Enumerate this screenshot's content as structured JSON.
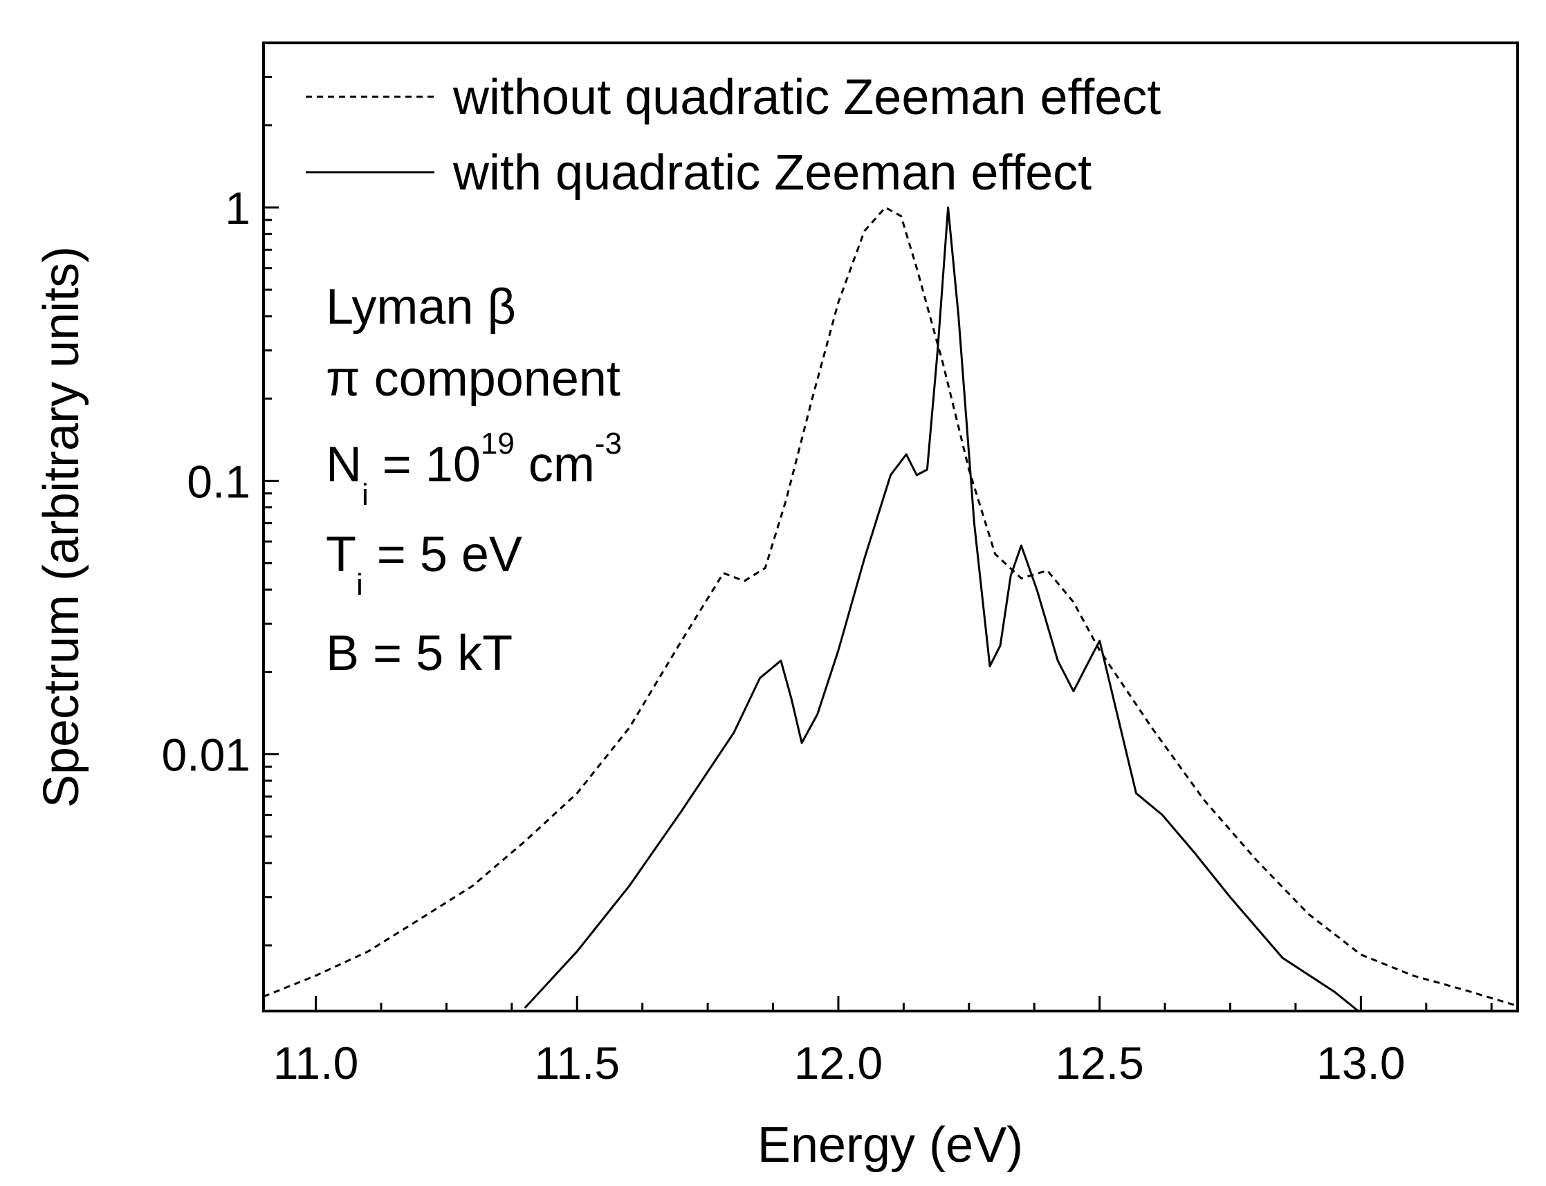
{
  "chart_data": {
    "type": "line",
    "xlabel": "Energy (eV)",
    "ylabel": "Spectrum (arbitrary units)",
    "xlim": [
      10.9,
      13.3
    ],
    "ylim": [
      0.00115,
      4.0
    ],
    "yscale": "log",
    "x_ticks": [
      11.0,
      11.5,
      12.0,
      12.5,
      13.0
    ],
    "x_tick_labels": [
      "11.0",
      "11.5",
      "12.0",
      "12.5",
      "13.0"
    ],
    "x_minor_step": 0.125,
    "y_ticks": [
      0.01,
      0.1,
      1
    ],
    "y_tick_labels": [
      "0.01",
      "0.1",
      "1"
    ],
    "grid": false,
    "legend_position": "top-left",
    "annotation": {
      "line1": "Lyman β",
      "line2": "π component",
      "ni_prefix": "N",
      "ni_sub": "i",
      "ni_mid": " = 10",
      "ni_sup": "19",
      "ni_unit": " cm",
      "ni_unit_sup": "-3",
      "ti_prefix": "T",
      "ti_sub": "i",
      "ti_rest": " = 5 eV",
      "b_line": "B = 5 kT"
    },
    "series": [
      {
        "name": "without quadratic Zeeman effect",
        "style": "dashed",
        "color": "#000000",
        "x": [
          10.9,
          11.0,
          11.1,
          11.2,
          11.3,
          11.4,
          11.5,
          11.6,
          11.7,
          11.78,
          11.82,
          11.86,
          11.9,
          11.95,
          12.0,
          12.05,
          12.09,
          12.12,
          12.15,
          12.2,
          12.25,
          12.3,
          12.35,
          12.4,
          12.45,
          12.5,
          12.6,
          12.7,
          12.8,
          12.9,
          13.0,
          13.1,
          13.2,
          13.3
        ],
        "values": [
          0.0013,
          0.00155,
          0.0019,
          0.0025,
          0.0033,
          0.0048,
          0.0072,
          0.0125,
          0.026,
          0.046,
          0.043,
          0.048,
          0.085,
          0.2,
          0.45,
          0.82,
          1.0,
          0.93,
          0.6,
          0.27,
          0.11,
          0.054,
          0.044,
          0.047,
          0.036,
          0.024,
          0.0125,
          0.0068,
          0.0041,
          0.0026,
          0.00185,
          0.00155,
          0.00137,
          0.0012
        ]
      },
      {
        "name": "with quadratic Zeeman effect",
        "style": "solid",
        "color": "#000000",
        "x": [
          11.4,
          11.5,
          11.6,
          11.7,
          11.8,
          11.85,
          11.89,
          11.91,
          11.93,
          11.96,
          12.0,
          12.05,
          12.1,
          12.13,
          12.15,
          12.17,
          12.19,
          12.21,
          12.23,
          12.26,
          12.29,
          12.31,
          12.33,
          12.35,
          12.38,
          12.42,
          12.45,
          12.48,
          12.5,
          12.53,
          12.57,
          12.62,
          12.68,
          12.75,
          12.85,
          12.95,
          13.0
        ],
        "values": [
          0.00118,
          0.0019,
          0.0033,
          0.0062,
          0.012,
          0.019,
          0.022,
          0.016,
          0.011,
          0.014,
          0.024,
          0.052,
          0.105,
          0.125,
          0.105,
          0.11,
          0.3,
          1.0,
          0.4,
          0.07,
          0.021,
          0.025,
          0.045,
          0.058,
          0.04,
          0.022,
          0.017,
          0.022,
          0.026,
          0.015,
          0.0072,
          0.006,
          0.0044,
          0.003,
          0.0018,
          0.00135,
          0.00113
        ]
      }
    ]
  }
}
